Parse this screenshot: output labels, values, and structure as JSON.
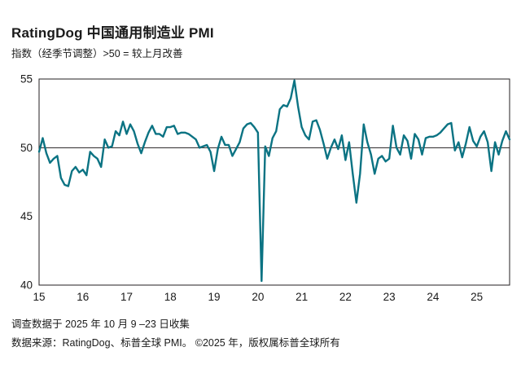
{
  "header": {
    "title": "RatingDog 中国通用制造业 PMI",
    "subtitle": "指数（经季节调整）>50 = 较上月改善"
  },
  "footer": {
    "line1": "调查数据于 2025 年 10 月 9 –23 日收集",
    "line2": "数据来源：RatingDog、标普全球 PMI。 ©2025 年，版权属标普全球所有"
  },
  "colors": {
    "line": "#0b7383",
    "frame": "#231f20",
    "fifty_line": "#231f20",
    "text": "#1a1a1a"
  },
  "chart_data": {
    "type": "line",
    "title": "RatingDog 中国通用制造业 PMI",
    "subtitle": "指数（经季节调整）>50 = 较上月改善",
    "frequency": "monthly",
    "start": "2015-01",
    "end": "2025-10",
    "ylim": [
      40,
      55
    ],
    "y_ticks": [
      55,
      50,
      45,
      40
    ],
    "x_tick_labels": [
      "15",
      "16",
      "17",
      "18",
      "19",
      "20",
      "21",
      "22",
      "23",
      "24",
      "25"
    ],
    "reference_line": 50,
    "grid": false,
    "legend": "none",
    "series": [
      {
        "name": "PMI",
        "values": [
          49.7,
          50.7,
          49.6,
          48.9,
          49.2,
          49.4,
          47.8,
          47.3,
          47.2,
          48.3,
          48.6,
          48.2,
          48.4,
          48.0,
          49.7,
          49.4,
          49.2,
          48.6,
          50.6,
          50.0,
          50.1,
          51.2,
          50.9,
          51.9,
          51.0,
          51.7,
          51.2,
          50.3,
          49.6,
          50.4,
          51.1,
          51.6,
          51.0,
          51.0,
          50.8,
          51.5,
          51.5,
          51.6,
          51.0,
          51.1,
          51.1,
          51.0,
          50.8,
          50.6,
          50.0,
          50.1,
          50.2,
          49.7,
          48.3,
          49.9,
          50.8,
          50.2,
          50.2,
          49.4,
          49.9,
          50.4,
          51.4,
          51.7,
          51.8,
          51.5,
          51.1,
          40.3,
          50.1,
          49.4,
          50.7,
          51.2,
          52.8,
          53.1,
          53.0,
          53.6,
          54.9,
          53.0,
          51.5,
          50.9,
          50.6,
          51.9,
          52.0,
          51.3,
          50.3,
          49.2,
          50.0,
          50.6,
          49.9,
          50.9,
          49.1,
          50.4,
          48.1,
          46.0,
          48.1,
          51.7,
          50.4,
          49.5,
          48.1,
          49.2,
          49.4,
          49.0,
          49.2,
          51.6,
          50.0,
          49.5,
          50.9,
          50.5,
          49.2,
          51.0,
          50.6,
          49.5,
          50.7,
          50.8,
          50.8,
          50.9,
          51.1,
          51.4,
          51.7,
          51.8,
          49.8,
          50.4,
          49.3,
          50.3,
          51.5,
          50.5,
          50.1,
          50.8,
          51.2,
          50.4,
          48.3,
          50.4,
          49.5,
          50.5,
          51.2,
          50.6
        ]
      }
    ]
  }
}
